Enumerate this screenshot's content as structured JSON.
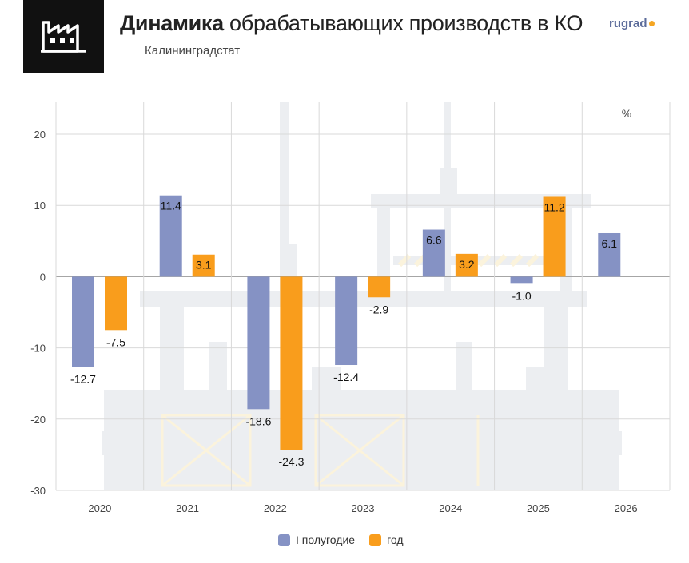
{
  "header": {
    "title_bold": "Динамика",
    "title_rest": " обрабатывающих производств в КО",
    "source": "Калининградстат",
    "brand": "rugrad"
  },
  "icon": "factory-icon",
  "colors": {
    "series1": "#8592c4",
    "series2": "#f99d1c",
    "grid": "#d9d9d9",
    "background_art": "#eceef1"
  },
  "chart_data": {
    "type": "bar",
    "unit_label": "%",
    "categories": [
      "2020",
      "2021",
      "2022",
      "2023",
      "2024",
      "2025",
      "2026"
    ],
    "ylim": [
      -30,
      20
    ],
    "yticks": [
      20,
      10,
      0,
      -10,
      -20,
      -30
    ],
    "grid": true,
    "legend_position": "bottom",
    "series": [
      {
        "name": "I полугодие",
        "values": [
          -12.7,
          11.4,
          -18.6,
          -12.4,
          6.6,
          -1.0,
          6.1
        ],
        "labels": [
          "-12.7",
          "11.4",
          "-18.6",
          "-12.4",
          "6.6",
          "-1.0",
          "6.1"
        ]
      },
      {
        "name": "год",
        "values": [
          -7.5,
          3.1,
          -24.3,
          -2.9,
          3.2,
          11.2,
          null
        ],
        "labels": [
          "-7.5",
          "3.1",
          "-24.3",
          "-2.9",
          "3.2",
          "11.2",
          ""
        ]
      }
    ]
  }
}
